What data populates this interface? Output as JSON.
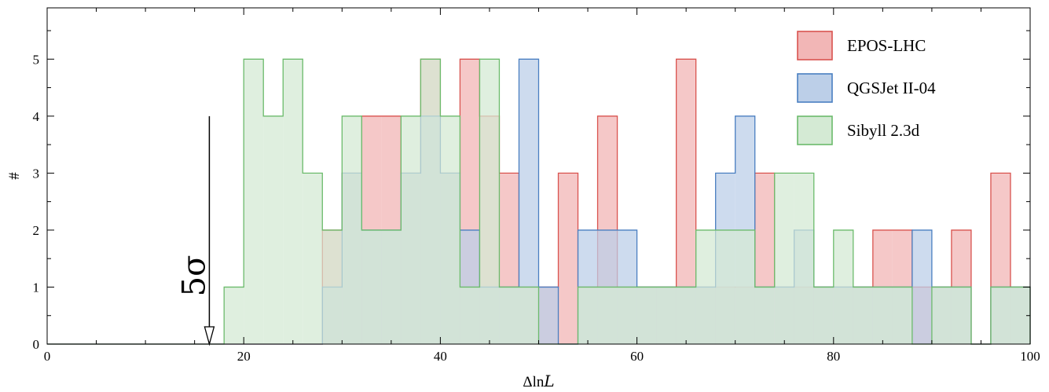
{
  "chart_data": {
    "type": "bar",
    "histogram": true,
    "xlabel": "ΔlnL",
    "ylabel": "#",
    "xlim": [
      0,
      100
    ],
    "ylim": [
      0,
      5.9
    ],
    "x_ticks": [
      0,
      20,
      40,
      60,
      80,
      100
    ],
    "y_ticks": [
      0,
      1,
      2,
      3,
      4,
      5
    ],
    "bin_width": 2,
    "bin_edges": [
      0,
      2,
      4,
      6,
      8,
      10,
      12,
      14,
      16,
      18,
      20,
      22,
      24,
      26,
      28,
      30,
      32,
      34,
      36,
      38,
      40,
      42,
      44,
      46,
      48,
      50,
      52,
      54,
      56,
      58,
      60,
      62,
      64,
      66,
      68,
      70,
      72,
      74,
      76,
      78,
      80,
      82,
      84,
      86,
      88,
      90,
      92,
      94,
      96,
      98,
      100
    ],
    "legend_position": "top-right",
    "grid": false,
    "series": [
      {
        "name": "EPOS-LHC",
        "color": "#d9534f",
        "fill": "#f2b6b6",
        "values": [
          0,
          0,
          0,
          0,
          0,
          0,
          0,
          0,
          0,
          0,
          0,
          0,
          0,
          0,
          2,
          3,
          4,
          4,
          3,
          5,
          3,
          5,
          4,
          3,
          1,
          1,
          3,
          1,
          4,
          1,
          1,
          1,
          5,
          1,
          1,
          1,
          3,
          1,
          1,
          1,
          1,
          1,
          2,
          2,
          1,
          1,
          2,
          0,
          3,
          1
        ]
      },
      {
        "name": "QGSJet II-04",
        "color": "#4a7fc1",
        "fill": "#bccfe8",
        "values": [
          0,
          0,
          0,
          0,
          0,
          0,
          0,
          0,
          0,
          0,
          0,
          0,
          0,
          0,
          1,
          3,
          2,
          2,
          3,
          4,
          3,
          2,
          1,
          1,
          5,
          1,
          0,
          2,
          2,
          2,
          1,
          1,
          1,
          1,
          3,
          4,
          1,
          1,
          2,
          1,
          1,
          1,
          1,
          1,
          2,
          1,
          1,
          0,
          1,
          1
        ]
      },
      {
        "name": "Sibyll 2.3d",
        "color": "#6cbb6c",
        "fill": "#d4ead4",
        "values": [
          0,
          0,
          0,
          0,
          0,
          0,
          0,
          0,
          0,
          1,
          5,
          4,
          5,
          3,
          2,
          4,
          2,
          2,
          4,
          5,
          4,
          1,
          5,
          1,
          1,
          0,
          0,
          1,
          1,
          1,
          1,
          1,
          1,
          2,
          2,
          2,
          1,
          3,
          3,
          1,
          2,
          1,
          1,
          1,
          0,
          1,
          1,
          0,
          1,
          1
        ]
      }
    ],
    "annotation": {
      "text": "5σ",
      "x": 16.5,
      "y_from": 4,
      "y_to": 0
    }
  }
}
